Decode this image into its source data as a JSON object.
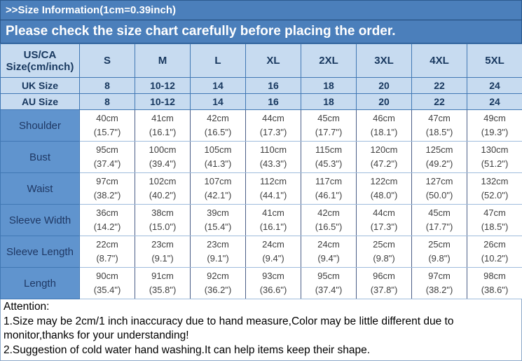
{
  "header": {
    "title": ">>Size Information(1cm=0.39inch)",
    "subtitle": "Please check the size chart carefully before placing the order."
  },
  "table": {
    "corner_label": "US/CA\nSize(cm/inch)",
    "size_columns": [
      "S",
      "M",
      "L",
      "XL",
      "2XL",
      "3XL",
      "4XL",
      "5XL"
    ],
    "uk_row": {
      "label": "UK Size",
      "values": [
        "8",
        "10-12",
        "14",
        "16",
        "18",
        "20",
        "22",
        "24"
      ]
    },
    "au_row": {
      "label": "AU Size",
      "values": [
        "8",
        "10-12",
        "14",
        "16",
        "18",
        "20",
        "22",
        "24"
      ]
    },
    "measurements": [
      {
        "label": "Shoulder",
        "values": [
          "40cm\n(15.7\")",
          "41cm\n(16.1\")",
          "42cm\n(16.5\")",
          "44cm\n(17.3\")",
          "45cm\n(17.7\")",
          "46cm\n(18.1\")",
          "47cm\n(18.5\")",
          "49cm\n(19.3\")"
        ]
      },
      {
        "label": "Bust",
        "values": [
          "95cm\n(37.4\")",
          "100cm\n(39.4\")",
          "105cm\n(41.3\")",
          "110cm\n(43.3\")",
          "115cm\n(45.3\")",
          "120cm\n(47.2\")",
          "125cm\n(49.2\")",
          "130cm\n(51.2\")"
        ]
      },
      {
        "label": "Waist",
        "values": [
          "97cm\n(38.2\")",
          "102cm\n(40.2\")",
          "107cm\n(42.1\")",
          "112cm\n(44.1\")",
          "117cm\n(46.1\")",
          "122cm\n(48.0\")",
          "127cm\n(50.0\")",
          "132cm\n(52.0\")"
        ]
      },
      {
        "label": "Sleeve Width",
        "values": [
          "36cm\n(14.2\")",
          "38cm\n(15.0\")",
          "39cm\n(15.4\")",
          "41cm\n(16.1\")",
          "42cm\n(16.5\")",
          "44cm\n(17.3\")",
          "45cm\n(17.7\")",
          "47cm\n(18.5\")"
        ]
      },
      {
        "label": "Sleeve Length",
        "values": [
          "22cm\n(8.7\")",
          "23cm\n(9.1\")",
          "23cm\n(9.1\")",
          "24cm\n(9.4\")",
          "24cm\n(9.4\")",
          "25cm\n(9.8\")",
          "25cm\n(9.8\")",
          "26cm\n(10.2\")"
        ]
      },
      {
        "label": "Length",
        "values": [
          "90cm\n(35.4\")",
          "91cm\n(35.8\")",
          "92cm\n(36.2\")",
          "93cm\n(36.6\")",
          "95cm\n(37.4\")",
          "96cm\n(37.8\")",
          "97cm\n(38.2\")",
          "98cm\n(38.6\")"
        ]
      }
    ]
  },
  "attention": {
    "title": "Attention:",
    "notes": [
      "1.Size may be 2cm/1 inch inaccuracy due to hand measure,Color may be little different due to monitor,thanks for your understanding!",
      "2.Suggestion of cold water hand washing.It can help items keep their shape."
    ]
  },
  "colors": {
    "banner_blue": "#4b7fbb",
    "light_blue_row": "#c7dbf0",
    "label_cell_blue": "#6094ce",
    "header_text_navy": "#17375e",
    "value_text_gray": "#3f3f3f"
  }
}
